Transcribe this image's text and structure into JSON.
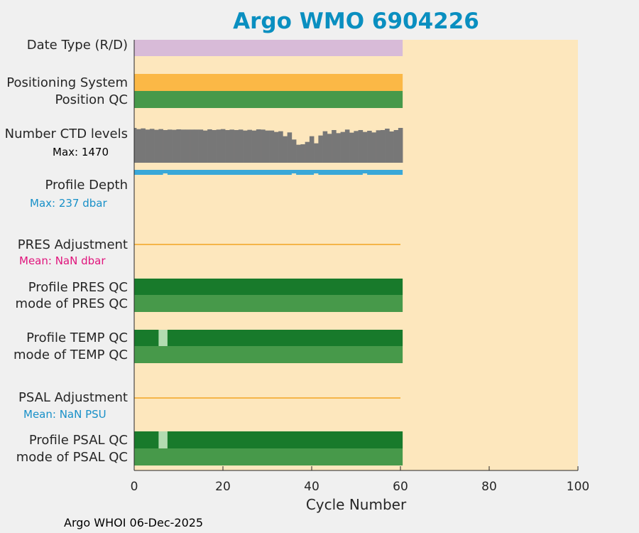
{
  "title": "Argo WMO 6904226",
  "footer": "Argo WHOI 06-Dec-2025",
  "colors": {
    "background": "#fde7bd",
    "date_type": "#d8bbd8",
    "positioning": "#fbb846",
    "qc_good": "#47994a",
    "qc_dark": "#187a2b",
    "qc_light": "#b3dcb1",
    "ctd": "#777777",
    "depth": "#3aa8d8",
    "adjust_line": "#f5b549",
    "title": "#0a8fc0",
    "mean_pres": "#e0147c",
    "mean_psal": "#1890c8"
  },
  "rows": {
    "date_type": "Date Type (R/D)",
    "positioning_system": "Positioning System",
    "position_qc": "Position QC",
    "number_ctd_levels": "Number CTD levels",
    "ctd_max": "Max: 1470",
    "profile_depth": "Profile Depth",
    "depth_max": "Max:  237 dbar",
    "pres_adjustment": "PRES Adjustment",
    "pres_mean": "Mean:  NaN dbar",
    "profile_pres_qc": "Profile PRES QC",
    "mode_pres_qc": "mode of PRES QC",
    "profile_temp_qc": "Profile TEMP QC",
    "mode_temp_qc": "mode of TEMP QC",
    "psal_adjustment": "PSAL Adjustment",
    "psal_mean": "Mean:  NaN PSU",
    "profile_psal_qc": "Profile PSAL QC",
    "mode_psal_qc": "mode of PSAL QC"
  },
  "chart_data": {
    "type": "bar",
    "xlabel": "Cycle Number",
    "xlim": [
      0,
      100
    ],
    "xticks": [
      0,
      20,
      40,
      60,
      80,
      100
    ],
    "cycles_range": [
      0,
      60
    ],
    "ctd_levels_max": 1470,
    "ctd_levels": [
      1470,
      1420,
      1450,
      1400,
      1430,
      1390,
      1420,
      1380,
      1400,
      1390,
      1410,
      1400,
      1400,
      1400,
      1400,
      1400,
      1360,
      1410,
      1380,
      1400,
      1420,
      1380,
      1400,
      1380,
      1400,
      1360,
      1390,
      1360,
      1410,
      1400,
      1360,
      1360,
      1300,
      1330,
      1120,
      1280,
      980,
      760,
      780,
      880,
      1120,
      820,
      1150,
      1330,
      1220,
      1380,
      1250,
      1300,
      1400,
      1270,
      1340,
      1380,
      1300,
      1350,
      1280,
      1370,
      1380,
      1440,
      1320,
      1380,
      1470
    ],
    "profile_depth_max_dbar": 237,
    "profile_pres_qc": {
      "grade": "A",
      "cycles": [
        0,
        60
      ]
    },
    "profile_temp_qc": {
      "exceptions": [
        5,
        6
      ],
      "note": "light for cycles 5-6"
    },
    "profile_psal_qc": {
      "exceptions": [
        5,
        6
      ]
    }
  }
}
